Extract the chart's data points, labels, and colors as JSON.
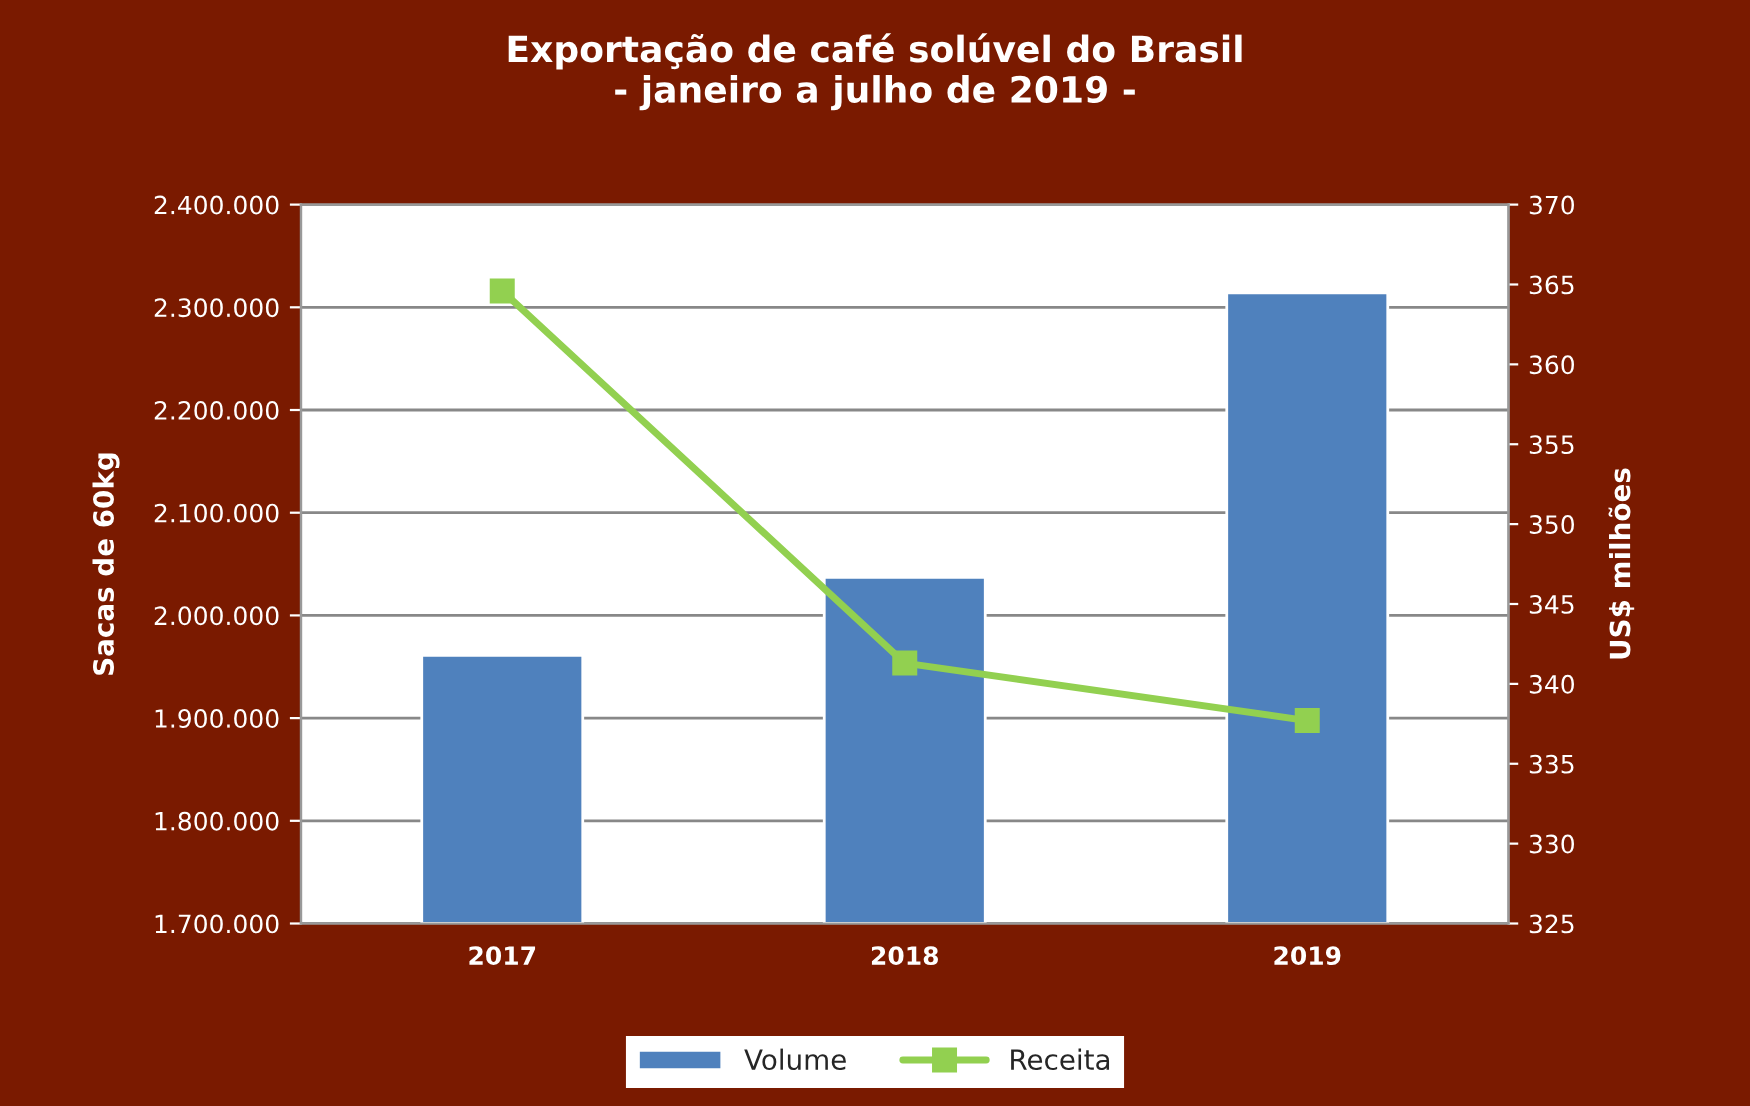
{
  "chart_data": {
    "type": "bar",
    "title": "Exportação de café solúvel do Brasil\n- janeiro a julho de 2019 -",
    "categories": [
      "2017",
      "2018",
      "2019"
    ],
    "series": [
      {
        "name": "Volume",
        "color": "#4f81bd",
        "values": [
          1961000,
          2037000,
          2314000
        ]
      },
      {
        "name": "Receita",
        "type": "line",
        "axis": "y2",
        "color": "#92d050",
        "values": [
          364.6,
          341.3,
          337.7
        ]
      }
    ],
    "ylabel": "Sacas de 60kg",
    "y2label": "US$ milhões",
    "ylim": [
      1700000,
      2400000
    ],
    "yticks": [
      {
        "value": 1700000,
        "label": "1.700.000"
      },
      {
        "value": 1800000,
        "label": "1.800.000"
      },
      {
        "value": 1900000,
        "label": "1.900.000"
      },
      {
        "value": 2000000,
        "label": "2.000.000"
      },
      {
        "value": 2100000,
        "label": "2.100.000"
      },
      {
        "value": 2200000,
        "label": "2.200.000"
      },
      {
        "value": 2300000,
        "label": "2.300.000"
      },
      {
        "value": 2400000,
        "label": "2.400.000"
      }
    ],
    "y2lim": [
      325,
      370
    ],
    "y2ticks": [
      325,
      330,
      335,
      340,
      345,
      350,
      355,
      360,
      365,
      370
    ],
    "grid": "y",
    "legend": "bottom",
    "marker": "square",
    "line_style": "solid"
  }
}
